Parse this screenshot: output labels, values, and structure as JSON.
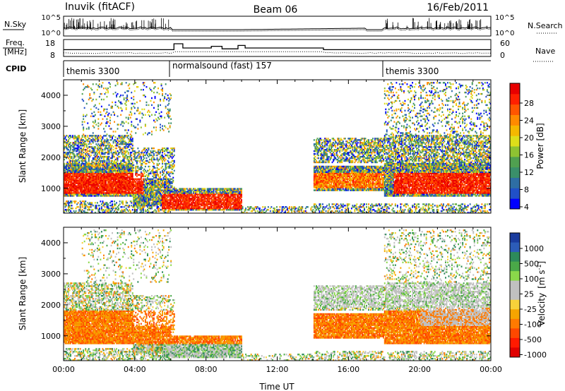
{
  "header": {
    "station": "Inuvik (fitACF)",
    "beam": "Beam 06",
    "date": "16/Feb/2011"
  },
  "noise_panel": {
    "left_label": "N.Sky",
    "right_label": "N.Search",
    "left_ticks": [
      "10^5",
      "10^0"
    ],
    "right_ticks": [
      "10^5",
      "10^0"
    ]
  },
  "freq_panel": {
    "left_label_line1": "Freq.",
    "left_label_line2": "[MHz]",
    "left_ticks": [
      "18",
      "8"
    ],
    "right_label": "Nave",
    "right_ticks": [
      "60",
      "0"
    ]
  },
  "cpid_panel": {
    "label": "CPID",
    "segments": [
      {
        "label": "themis 3300",
        "start_hour": 0,
        "end_hour": 6
      },
      {
        "label": "normalsound (fast) 157",
        "start_hour": 6,
        "end_hour": 18
      },
      {
        "label": "themis 3300",
        "start_hour": 18,
        "end_hour": 24
      }
    ]
  },
  "chart_data": [
    {
      "type": "heatmap",
      "name": "power",
      "ylabel": "Slant Range [km]",
      "xlabel": "",
      "x_range_hours": [
        0,
        24
      ],
      "ylim": [
        200,
        4500
      ],
      "y_ticks": [
        "1000",
        "2000",
        "3000",
        "4000"
      ],
      "colorbar_label": "Power [dB]",
      "colorbar_ticks": [
        "28",
        "24",
        "20",
        "16",
        "12",
        "8",
        "4"
      ],
      "colorbar_colors": [
        "#0000ff",
        "#2050c8",
        "#2e6ea4",
        "#3a8f6a",
        "#50a050",
        "#8ec232",
        "#dede1a",
        "#f5b800",
        "#ff8a00",
        "#ff5500",
        "#ff2000",
        "#e80000"
      ]
    },
    {
      "type": "heatmap",
      "name": "velocity",
      "ylabel": "Slant Range [km]",
      "xlabel": "Time UT",
      "x_range_hours": [
        0,
        24
      ],
      "ylim": [
        200,
        4500
      ],
      "y_ticks": [
        "1000",
        "2000",
        "3000",
        "4000"
      ],
      "x_ticks": [
        "00:00",
        "04:00",
        "08:00",
        "12:00",
        "16:00",
        "20:00",
        "00:00"
      ],
      "colorbar_label_main": "Velocity",
      "colorbar_label_unit": "[m s",
      "colorbar_label_exp": "-1",
      "colorbar_label_close": "]",
      "colorbar_ticks": [
        "1000",
        "500",
        "100",
        "25",
        "-25",
        "-100",
        "-500",
        "-1000"
      ],
      "colorbar_colors": [
        "#1a3c9e",
        "#2c5cb8",
        "#2d8a5a",
        "#4aa848",
        "#8ad84a",
        "#c0c0c0",
        "#c0c0c0",
        "#f7d23a",
        "#f5a400",
        "#ff7a00",
        "#ff4800",
        "#ff1a00",
        "#e00000"
      ]
    }
  ]
}
